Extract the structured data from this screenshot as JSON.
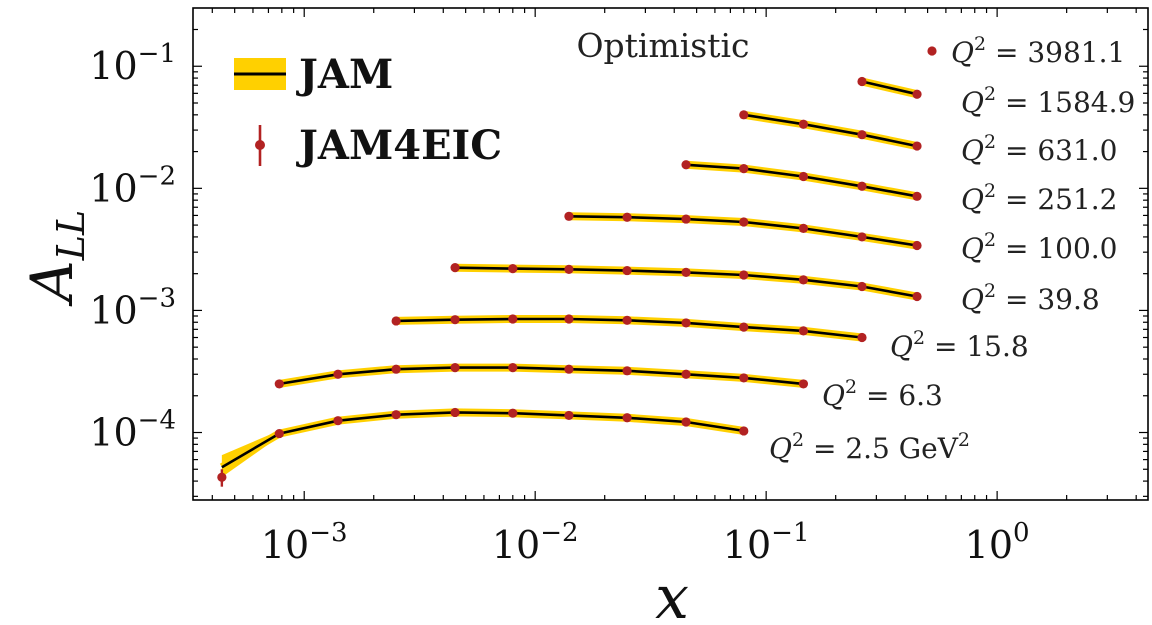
{
  "chart_data": {
    "type": "line",
    "title": "Optimistic",
    "xlabel": "x",
    "ylabel": "A_LL",
    "xscale": "log",
    "yscale": "log",
    "xlim": [
      0.00033,
      4.5
    ],
    "ylim": [
      2.8e-05,
      0.3
    ],
    "grid": false,
    "xticks": [
      {
        "value": 0.001,
        "base": "10",
        "exp": "−3"
      },
      {
        "value": 0.01,
        "base": "10",
        "exp": "−2"
      },
      {
        "value": 0.1,
        "base": "10",
        "exp": "−1"
      },
      {
        "value": 1,
        "base": "10",
        "exp": "0"
      }
    ],
    "yticks": [
      {
        "value": 0.0001,
        "base": "10",
        "exp": "−4"
      },
      {
        "value": 0.001,
        "base": "10",
        "exp": "−3"
      },
      {
        "value": 0.01,
        "base": "10",
        "exp": "−2"
      },
      {
        "value": 0.1,
        "base": "10",
        "exp": "−1"
      }
    ],
    "legend": {
      "position": "top-left",
      "entries": [
        {
          "label": "JAM",
          "style": "band-line"
        },
        {
          "label": "JAM4EIC",
          "style": "errorbar-point"
        }
      ]
    },
    "colors": {
      "band": "#FFD000",
      "line": "#000000",
      "points": "#B22222"
    },
    "series": [
      {
        "label": "Q² = 2.5 GeV²",
        "x": [
          0.00044,
          0.00078,
          0.0014,
          0.0025,
          0.0045,
          0.008,
          0.014,
          0.025,
          0.045,
          0.08
        ],
        "y": [
          5.2e-05,
          9.8e-05,
          0.000125,
          0.00014,
          0.000146,
          0.000144,
          0.000138,
          0.000132,
          0.000122,
          0.000103
        ],
        "points_y": [
          4.3e-05,
          9.8e-05,
          0.000125,
          0.00014,
          0.000146,
          0.000144,
          0.000138,
          0.000132,
          0.000122,
          0.000103
        ],
        "point_err": [
          7e-06,
          0,
          0,
          0,
          0,
          0,
          0,
          0,
          0,
          0
        ]
      },
      {
        "label": "Q² = 6.3",
        "x": [
          0.00078,
          0.0014,
          0.0025,
          0.0045,
          0.008,
          0.014,
          0.025,
          0.045,
          0.08,
          0.145
        ],
        "y": [
          0.00025,
          0.0003,
          0.00033,
          0.00034,
          0.00034,
          0.00033,
          0.00032,
          0.0003,
          0.00028,
          0.00025
        ]
      },
      {
        "label": "Q² = 15.8",
        "x": [
          0.0025,
          0.0045,
          0.008,
          0.014,
          0.025,
          0.045,
          0.08,
          0.145,
          0.26
        ],
        "y": [
          0.00082,
          0.00084,
          0.00085,
          0.00085,
          0.00083,
          0.00079,
          0.00073,
          0.00068,
          0.0006
        ]
      },
      {
        "label": "Q² = 39.8",
        "x": [
          0.0045,
          0.008,
          0.014,
          0.025,
          0.045,
          0.08,
          0.145,
          0.26,
          0.45
        ],
        "y": [
          0.00224,
          0.0022,
          0.00217,
          0.00212,
          0.00205,
          0.00195,
          0.00178,
          0.00157,
          0.0013
        ]
      },
      {
        "label": "Q² = 100.0",
        "x": [
          0.014,
          0.025,
          0.045,
          0.08,
          0.145,
          0.26,
          0.45
        ],
        "y": [
          0.0059,
          0.0058,
          0.0056,
          0.0053,
          0.0047,
          0.004,
          0.0034
        ]
      },
      {
        "label": "Q² = 251.2",
        "x": [
          0.045,
          0.08,
          0.145,
          0.26,
          0.45
        ],
        "y": [
          0.0156,
          0.0145,
          0.0125,
          0.0104,
          0.0086
        ]
      },
      {
        "label": "Q² = 631.0",
        "x": [
          0.08,
          0.145,
          0.26,
          0.45
        ],
        "y": [
          0.04,
          0.0335,
          0.0275,
          0.0222
        ]
      },
      {
        "label": "Q² = 1584.9",
        "x": [
          0.26,
          0.45
        ],
        "y": [
          0.075,
          0.059
        ]
      },
      {
        "label": "Q² = 3981.1",
        "x": [],
        "y": []
      }
    ]
  }
}
